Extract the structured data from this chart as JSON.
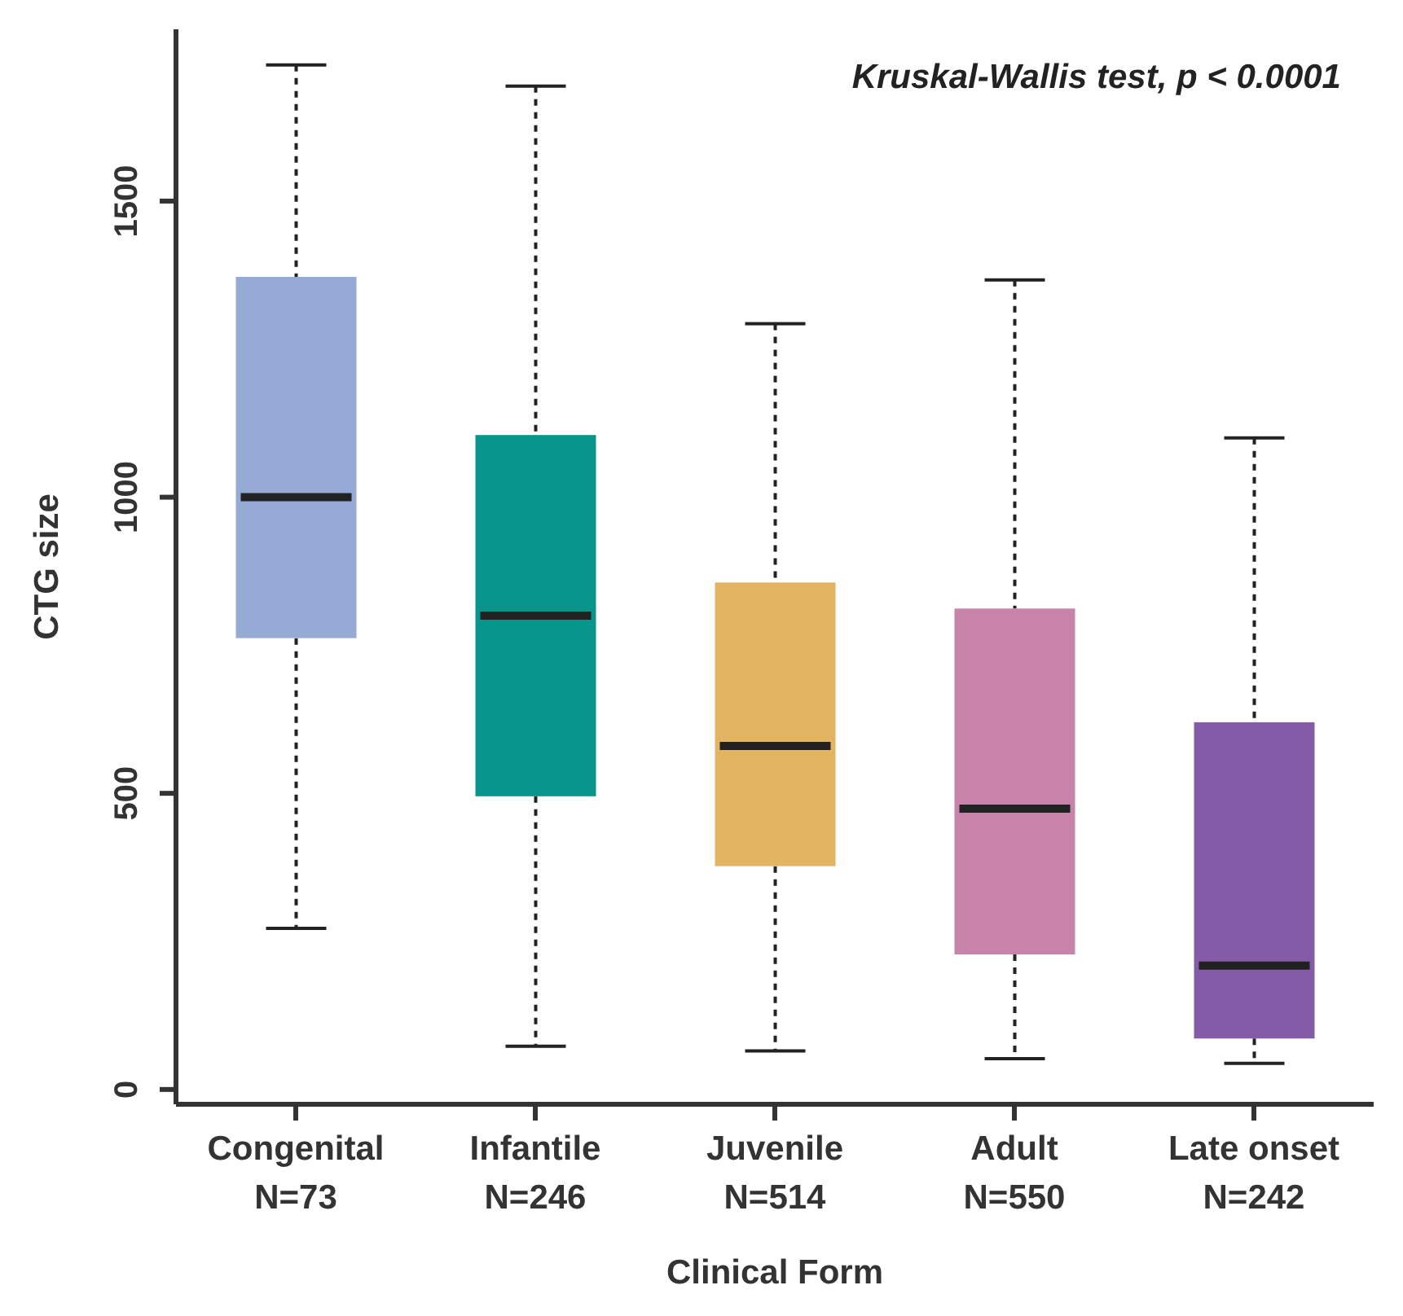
{
  "chart_data": {
    "type": "box",
    "xlabel": "Clinical Form",
    "ylabel": "CTG size",
    "categories": [
      "Congenital\nN=73",
      "Infantile\nN=246",
      "Juvenile\nN=514",
      "Adult\nN=550",
      "Late onset\nN=242"
    ],
    "boxes": [
      {
        "low": 272,
        "q1": 762,
        "median": 1000,
        "q3": 1372,
        "high": 1730
      },
      {
        "low": 73,
        "q1": 495,
        "median": 800,
        "q3": 1105,
        "high": 1694
      },
      {
        "low": 65,
        "q1": 377,
        "median": 580,
        "q3": 856,
        "high": 1293
      },
      {
        "low": 52,
        "q1": 228,
        "median": 474,
        "q3": 812,
        "high": 1367
      },
      {
        "low": 44,
        "q1": 86,
        "median": 209,
        "q3": 620,
        "high": 1100
      }
    ],
    "colors": [
      "#95aad4",
      "#07948a",
      "#e3b563",
      "#c883ab",
      "#835ba6"
    ],
    "ylim": [
      -25,
      1790
    ],
    "yticks": [
      0,
      500,
      1000,
      1500
    ],
    "annotations": [
      "Kruskal-Wallis test, p < 0.0001"
    ],
    "grid": false,
    "legend": false
  }
}
